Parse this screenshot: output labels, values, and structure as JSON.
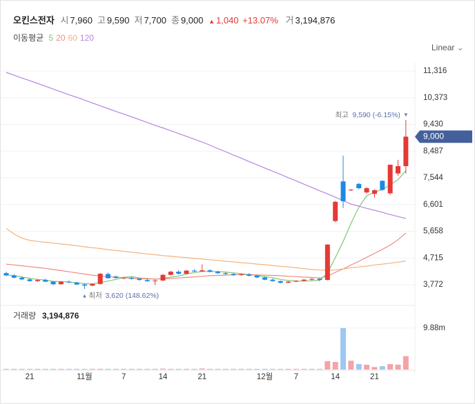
{
  "header": {
    "name": "오킨스전자",
    "items": [
      {
        "label": "시",
        "value": "7,960"
      },
      {
        "label": "고",
        "value": "9,590"
      },
      {
        "label": "저",
        "value": "7,700"
      },
      {
        "label": "종",
        "value": "9,000"
      }
    ],
    "change": "1,040",
    "change_pct": "+13.07%",
    "volume_label": "거",
    "volume_value": "3,194,876"
  },
  "legend_title": "이동평균",
  "scale_mode": "Linear",
  "chart_data": {
    "type": "candlestick",
    "categories": [
      null,
      null,
      null,
      "21",
      null,
      null,
      null,
      null,
      null,
      null,
      "11월",
      null,
      null,
      null,
      null,
      "7",
      null,
      null,
      null,
      null,
      "14",
      null,
      null,
      null,
      null,
      "21",
      null,
      null,
      null,
      null,
      null,
      null,
      null,
      "12월",
      null,
      null,
      null,
      "7",
      null,
      null,
      null,
      null,
      "14",
      null,
      null,
      null,
      null,
      "21",
      null,
      null,
      null,
      null
    ],
    "open": [
      4180,
      4100,
      4020,
      3960,
      3900,
      3940,
      3880,
      3790,
      3880,
      3850,
      3780,
      3740,
      3800,
      4150,
      4060,
      4010,
      4020,
      3980,
      3940,
      3900,
      3920,
      4120,
      4230,
      4160,
      4270,
      4240,
      4280,
      4230,
      4180,
      4150,
      4110,
      4140,
      4090,
      4030,
      3950,
      3900,
      3840,
      3880,
      3910,
      3950,
      3980,
      3940,
      6020,
      7420,
      7120,
      7330,
      7030,
      6980,
      7440,
      7000,
      7700,
      7960
    ],
    "high": [
      4230,
      4150,
      4060,
      4000,
      3970,
      3980,
      3900,
      3900,
      3920,
      3880,
      3820,
      3830,
      4180,
      4200,
      4100,
      4050,
      4060,
      4010,
      3990,
      3960,
      4150,
      4260,
      4280,
      4290,
      4320,
      4490,
      4320,
      4260,
      4220,
      4190,
      4170,
      4180,
      4120,
      4060,
      3990,
      3920,
      3900,
      3930,
      3970,
      4000,
      4020,
      5200,
      6730,
      8330,
      7150,
      7370,
      7220,
      7150,
      7460,
      8010,
      8180,
      9590
    ],
    "low": [
      4080,
      4000,
      3930,
      3880,
      3870,
      3860,
      3760,
      3770,
      3830,
      3760,
      3620,
      3720,
      3780,
      3990,
      3990,
      3960,
      3950,
      3910,
      3870,
      3760,
      3900,
      4100,
      4130,
      4140,
      4220,
      4230,
      4210,
      4150,
      4120,
      4080,
      4090,
      4060,
      4000,
      3930,
      3880,
      3820,
      3830,
      3860,
      3890,
      3920,
      3900,
      3930,
      5980,
      6480,
      7080,
      7140,
      6980,
      6850,
      7090,
      6950,
      7620,
      7700
    ],
    "close": [
      4100,
      4020,
      3960,
      3900,
      3940,
      3880,
      3790,
      3880,
      3850,
      3780,
      3740,
      3800,
      4160,
      4000,
      4010,
      4020,
      3980,
      3940,
      3900,
      3920,
      4120,
      4230,
      4160,
      4270,
      4240,
      4280,
      4230,
      4180,
      4150,
      4110,
      4140,
      4090,
      4030,
      3950,
      3900,
      3840,
      3880,
      3910,
      3950,
      3980,
      3940,
      5190,
      6700,
      6720,
      7130,
      7180,
      7180,
      7110,
      7120,
      8010,
      7960,
      9000
    ],
    "up_color": "#e53935",
    "down_color": "#1e88e5",
    "up_volume_color": "#f4a3a8",
    "down_volume_color": "#9cc8f2",
    "series": [
      {
        "name": "5",
        "color": "#7cc576",
        "values": [
          4120,
          4090,
          4050,
          4000,
          3960,
          3940,
          3890,
          3880,
          3870,
          3840,
          3810,
          3800,
          3850,
          3900,
          3960,
          4030,
          4060,
          4010,
          3990,
          3970,
          3990,
          4040,
          4080,
          4150,
          4200,
          4240,
          4240,
          4240,
          4220,
          4190,
          4160,
          4130,
          4100,
          4060,
          4020,
          3960,
          3920,
          3900,
          3900,
          3910,
          3930,
          4180,
          4730,
          5300,
          5940,
          6510,
          6910,
          7040,
          7130,
          7300,
          7480,
          7800
        ]
      },
      {
        "name": "20",
        "color": "#ef8a80",
        "values": [
          4500,
          4470,
          4440,
          4410,
          4380,
          4350,
          4310,
          4270,
          4230,
          4190,
          4150,
          4110,
          4080,
          4060,
          4040,
          4020,
          4000,
          3990,
          3980,
          3970,
          3980,
          3990,
          4010,
          4030,
          4050,
          4070,
          4090,
          4100,
          4110,
          4120,
          4130,
          4130,
          4120,
          4110,
          4100,
          4090,
          4070,
          4060,
          4040,
          4030,
          4010,
          4070,
          4210,
          4330,
          4470,
          4600,
          4740,
          4880,
          5020,
          5170,
          5360,
          5600
        ]
      },
      {
        "name": "60",
        "color": "#f2b27c",
        "values": [
          5760,
          5560,
          5420,
          5340,
          5300,
          5270,
          5240,
          5210,
          5180,
          5150,
          5110,
          5080,
          5050,
          5010,
          4980,
          4950,
          4920,
          4890,
          4860,
          4830,
          4800,
          4780,
          4750,
          4730,
          4700,
          4680,
          4650,
          4630,
          4600,
          4580,
          4550,
          4530,
          4500,
          4480,
          4450,
          4420,
          4400,
          4370,
          4340,
          4310,
          4290,
          4280,
          4300,
          4330,
          4370,
          4400,
          4430,
          4470,
          4500,
          4530,
          4570,
          4610
        ]
      },
      {
        "name": "120",
        "color": "#b784dd",
        "values": [
          11270,
          11170,
          11070,
          10980,
          10880,
          10780,
          10680,
          10580,
          10480,
          10390,
          10290,
          10190,
          10090,
          9990,
          9890,
          9800,
          9700,
          9600,
          9500,
          9400,
          9310,
          9210,
          9110,
          9010,
          8910,
          8810,
          8700,
          8580,
          8470,
          8350,
          8240,
          8120,
          8010,
          7890,
          7780,
          7670,
          7550,
          7440,
          7320,
          7210,
          7090,
          6980,
          6860,
          6740,
          6620,
          6550,
          6470,
          6400,
          6330,
          6250,
          6180,
          6110
        ]
      }
    ],
    "ylim": [
      3090,
      11610
    ],
    "yticks": [
      {
        "value": 3772,
        "label": "3,772"
      },
      {
        "value": 4715,
        "label": "4,715"
      },
      {
        "value": 5658,
        "label": "5,658"
      },
      {
        "value": 6601,
        "label": "6,601"
      },
      {
        "value": 7544,
        "label": "7,544"
      },
      {
        "value": 8487,
        "label": "8,487"
      },
      {
        "value": 9430,
        "label": "9,430"
      },
      {
        "value": 10373,
        "label": "10,373"
      },
      {
        "value": 11316,
        "label": "11,316"
      }
    ],
    "grid": true,
    "last_price_label": "9,000",
    "max_annotation": {
      "label": "최고",
      "text": "9,590 (-6.15%)"
    },
    "min_annotation": {
      "label": "최저",
      "text": "3,620 (148.62%)"
    },
    "volume_title": "거래량",
    "volume_title_value": "3,194,876",
    "volume": [
      120000,
      80000,
      150000,
      60000,
      50000,
      90000,
      110000,
      70000,
      40000,
      60000,
      90000,
      50000,
      180000,
      100000,
      60000,
      50000,
      70000,
      40000,
      60000,
      80000,
      210000,
      120000,
      90000,
      70000,
      80000,
      240000,
      90000,
      60000,
      50000,
      40000,
      50000,
      60000,
      45000,
      70000,
      80000,
      60000,
      40000,
      50000,
      45000,
      60000,
      90000,
      2000000,
      1800000,
      9900000,
      2100000,
      1300000,
      1150000,
      600000,
      800000,
      1300000,
      1150000,
      3194876
    ],
    "volume_ylim": [
      0,
      14800000
    ],
    "volume_yticks": [
      {
        "value": 9880000,
        "label": "9.88m"
      }
    ]
  }
}
